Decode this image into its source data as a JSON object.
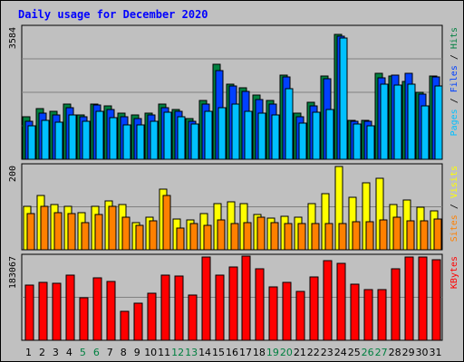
{
  "chart_data": {
    "type": "bar",
    "title": "Daily usage for December 2020",
    "categories": [
      "1",
      "2",
      "3",
      "4",
      "5",
      "6",
      "7",
      "8",
      "9",
      "10",
      "11",
      "12",
      "13",
      "14",
      "15",
      "16",
      "17",
      "18",
      "19",
      "20",
      "21",
      "22",
      "23",
      "24",
      "25",
      "26",
      "27",
      "28",
      "29",
      "30",
      "31"
    ],
    "weekend_days": [
      5,
      6,
      12,
      13,
      19,
      20,
      26,
      27
    ],
    "panels": [
      {
        "id": "hits_files_pages",
        "max_label": "3584",
        "ymax": 3584,
        "legend": [
          {
            "text": "Pages",
            "color": "#00c0ff"
          },
          {
            "text": "Files",
            "color": "#0040ff"
          },
          {
            "text": "Hits",
            "color": "#008040"
          }
        ],
        "series": [
          {
            "name": "Hits",
            "color": "#008040",
            "values": [
              1150,
              1380,
              1300,
              1500,
              1200,
              1500,
              1470,
              1270,
              1220,
              1270,
              1520,
              1370,
              1100,
              1600,
              2600,
              2050,
              1950,
              1750,
              1600,
              2300,
              1250,
              1550,
              2270,
              3400,
              1070,
              1070,
              2350,
              2280,
              2130,
              1840,
              2280
            ]
          },
          {
            "name": "Files",
            "color": "#0040ff",
            "values": [
              1050,
              1250,
              1200,
              1400,
              1150,
              1480,
              1350,
              1150,
              1100,
              1200,
              1420,
              1300,
              1030,
              1500,
              2430,
              2000,
              1850,
              1630,
              1520,
              2250,
              1170,
              1470,
              2200,
              3350,
              1030,
              1030,
              2230,
              2300,
              2350,
              1790,
              2250
            ]
          },
          {
            "name": "Pages",
            "color": "#00c0ff",
            "values": [
              920,
              1060,
              1020,
              1200,
              1030,
              1300,
              1130,
              940,
              950,
              1050,
              1280,
              1150,
              970,
              1300,
              1420,
              1500,
              1320,
              1270,
              1210,
              1940,
              990,
              1280,
              1350,
              3300,
              970,
              920,
              2050,
              2030,
              2060,
              1450,
              2000
            ]
          }
        ]
      },
      {
        "id": "visits_sites",
        "max_label": "200",
        "ymax": 200,
        "legend": [
          {
            "text": "Sites",
            "color": "#ff8000"
          },
          {
            "text": "Visits",
            "color": "#ffff00"
          }
        ],
        "series": [
          {
            "name": "Visits",
            "color": "#ffff00",
            "values": [
              104,
              130,
              108,
              104,
              90,
              104,
              117,
              108,
              66,
              78,
              145,
              73,
              71,
              86,
              110,
              115,
              110,
              85,
              75,
              80,
              78,
              110,
              134,
              200,
              126,
              160,
              172,
              108,
              120,
              102,
              93
            ]
          },
          {
            "name": "Sites",
            "color": "#ff8000",
            "values": [
              87,
              104,
              90,
              88,
              66,
              85,
              104,
              78,
              58,
              69,
              130,
              53,
              62,
              58,
              72,
              64,
              66,
              78,
              66,
              64,
              64,
              64,
              62,
              62,
              68,
              68,
              72,
              78,
              70,
              70,
              74
            ]
          }
        ]
      },
      {
        "id": "kbytes",
        "max_label": "183067",
        "ymax": 183067,
        "legend": [
          {
            "text": "KBytes",
            "color": "#ff0000"
          }
        ],
        "series": [
          {
            "name": "KBytes",
            "color": "#ff0000",
            "values": [
              121000,
              127000,
              126000,
              143000,
              93000,
              138000,
              130000,
              63000,
              81000,
              103000,
              143000,
              142000,
              99000,
              183000,
              144000,
              162000,
              185000,
              158000,
              118000,
              127000,
              107000,
              140000,
              175000,
              169000,
              123000,
              112000,
              112000,
              158000,
              183000,
              183000,
              178000
            ]
          }
        ]
      }
    ]
  }
}
